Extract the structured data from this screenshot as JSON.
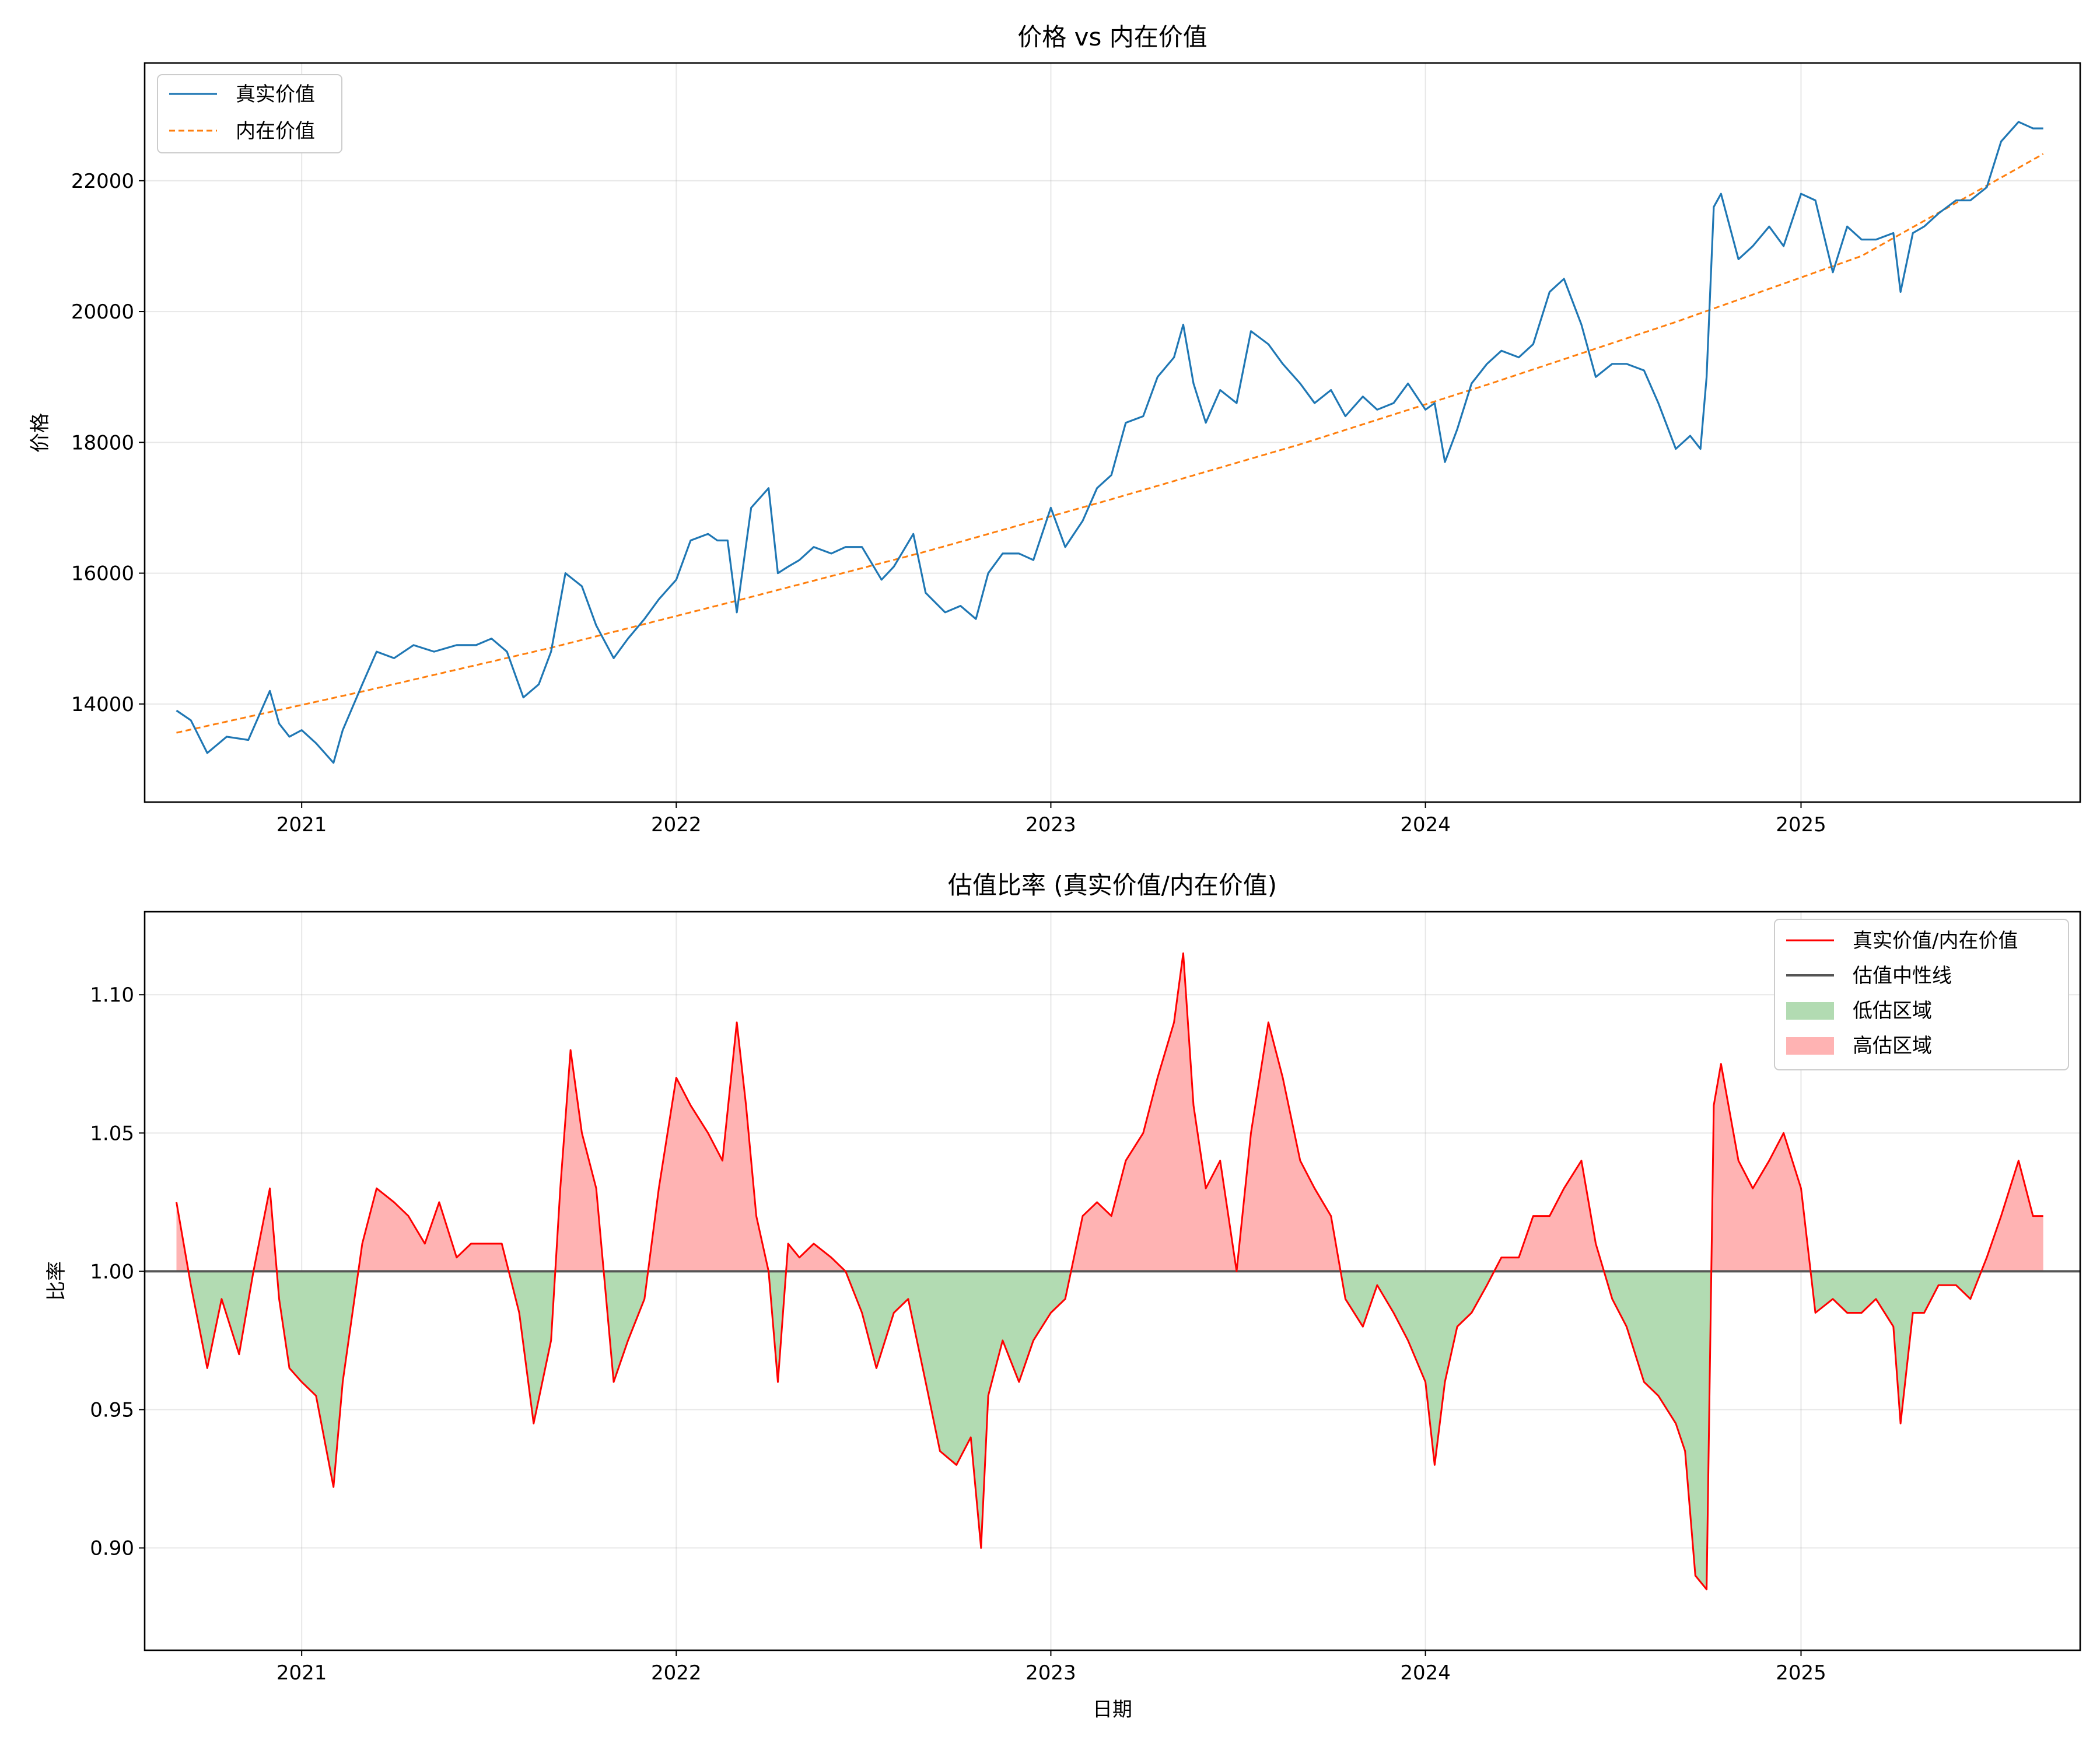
{
  "colors": {
    "price_line": "#1f77b4",
    "intrinsic_line": "#ff7f0e",
    "ratio_line": "#ff0000",
    "neutral_line": "#555555",
    "under_fill": "#b2dbb2",
    "over_fill": "#ffb3b3"
  },
  "chart_data": [
    {
      "type": "line",
      "title": "价格 vs 内在价值",
      "xlabel": "",
      "ylabel": "价格",
      "x_range": [
        "2020-08-01",
        "2025-09-30"
      ],
      "ylim": [
        12500,
        23800
      ],
      "x_ticks": [
        "2021",
        "2022",
        "2023",
        "2024",
        "2025"
      ],
      "y_ticks": [
        14000,
        16000,
        18000,
        20000,
        22000
      ],
      "y_tick_labels": [
        "14000",
        "16000",
        "18000",
        "20000",
        "22000"
      ],
      "grid": true,
      "legend": "top-left",
      "legend_labels": [
        "真实价值",
        "内在价值"
      ],
      "series": [
        {
          "name": "真实价值",
          "style": "solid",
          "x": [
            "2020-09-01",
            "2020-09-15",
            "2020-10-01",
            "2020-10-20",
            "2020-11-10",
            "2020-12-01",
            "2020-12-10",
            "2020-12-20",
            "2021-01-01",
            "2021-01-15",
            "2021-02-01",
            "2021-02-10",
            "2021-03-01",
            "2021-03-15",
            "2021-04-01",
            "2021-04-20",
            "2021-05-10",
            "2021-06-01",
            "2021-06-20",
            "2021-07-05",
            "2021-07-20",
            "2021-08-05",
            "2021-08-20",
            "2021-09-01",
            "2021-09-15",
            "2021-10-01",
            "2021-10-15",
            "2021-11-01",
            "2021-11-15",
            "2021-12-01",
            "2021-12-15",
            "2022-01-01",
            "2022-01-15",
            "2022-02-01",
            "2022-02-10",
            "2022-02-20",
            "2022-03-01",
            "2022-03-15",
            "2022-04-01",
            "2022-04-10",
            "2022-04-20",
            "2022-05-01",
            "2022-05-15",
            "2022-06-01",
            "2022-06-15",
            "2022-07-01",
            "2022-07-20",
            "2022-08-01",
            "2022-08-20",
            "2022-09-01",
            "2022-09-20",
            "2022-10-05",
            "2022-10-20",
            "2022-11-01",
            "2022-11-15",
            "2022-12-01",
            "2022-12-15",
            "2023-01-01",
            "2023-01-15",
            "2023-02-01",
            "2023-02-15",
            "2023-03-01",
            "2023-03-15",
            "2023-04-01",
            "2023-04-15",
            "2023-05-01",
            "2023-05-10",
            "2023-05-20",
            "2023-06-01",
            "2023-06-15",
            "2023-07-01",
            "2023-07-15",
            "2023-08-01",
            "2023-08-15",
            "2023-09-01",
            "2023-09-15",
            "2023-10-01",
            "2023-10-15",
            "2023-11-01",
            "2023-11-15",
            "2023-12-01",
            "2023-12-15",
            "2024-01-01",
            "2024-01-10",
            "2024-01-20",
            "2024-02-01",
            "2024-02-15",
            "2024-03-01",
            "2024-03-15",
            "2024-04-01",
            "2024-04-15",
            "2024-05-01",
            "2024-05-15",
            "2024-06-01",
            "2024-06-15",
            "2024-07-01",
            "2024-07-15",
            "2024-08-01",
            "2024-08-15",
            "2024-09-01",
            "2024-09-15",
            "2024-09-25",
            "2024-10-01",
            "2024-10-08",
            "2024-10-15",
            "2024-11-01",
            "2024-11-15",
            "2024-12-01",
            "2024-12-15",
            "2025-01-01",
            "2025-01-15",
            "2025-02-01",
            "2025-02-15",
            "2025-03-01",
            "2025-03-15",
            "2025-04-01",
            "2025-04-08",
            "2025-04-20",
            "2025-05-01",
            "2025-05-15",
            "2025-06-01",
            "2025-06-15",
            "2025-07-01",
            "2025-07-15",
            "2025-08-01",
            "2025-08-15",
            "2025-08-25"
          ],
          "y": [
            13900,
            13750,
            13250,
            13500,
            13450,
            14200,
            13700,
            13500,
            13600,
            13400,
            13100,
            13600,
            14300,
            14800,
            14700,
            14900,
            14800,
            14900,
            14900,
            15000,
            14800,
            14100,
            14300,
            14800,
            16000,
            15800,
            15200,
            14700,
            15000,
            15300,
            15600,
            15900,
            16500,
            16600,
            16500,
            16500,
            15400,
            17000,
            17300,
            16000,
            16100,
            16200,
            16400,
            16300,
            16400,
            16400,
            15900,
            16100,
            16600,
            15700,
            15400,
            15500,
            15300,
            16000,
            16300,
            16300,
            16200,
            17000,
            16400,
            16800,
            17300,
            17500,
            18300,
            18400,
            19000,
            19300,
            19800,
            18900,
            18300,
            18800,
            18600,
            19700,
            19500,
            19200,
            18900,
            18600,
            18800,
            18400,
            18700,
            18500,
            18600,
            18900,
            18500,
            18600,
            17700,
            18200,
            18900,
            19200,
            19400,
            19300,
            19500,
            20300,
            20500,
            19800,
            19000,
            19200,
            19200,
            19100,
            18600,
            17900,
            18100,
            17900,
            19000,
            21600,
            21800,
            20800,
            21000,
            21300,
            21000,
            21800,
            21700,
            20600,
            21300,
            21100,
            21100,
            21200,
            20300,
            21200,
            21300,
            21500,
            21700,
            21700,
            21900,
            22600,
            22900,
            22800,
            22800
          ]
        },
        {
          "name": "内在价值",
          "style": "dashed",
          "x": [
            "2020-09-01",
            "2021-03-01",
            "2021-09-01",
            "2022-03-01",
            "2022-09-01",
            "2023-03-01",
            "2023-09-01",
            "2024-03-01",
            "2024-09-01",
            "2025-03-01",
            "2025-08-25"
          ],
          "y": [
            13560,
            14190,
            14860,
            15580,
            16330,
            17130,
            17970,
            18880,
            19840,
            20850,
            22410
          ]
        }
      ]
    },
    {
      "type": "area",
      "title": "估值比率 (真实价值/内在价值)",
      "xlabel": "日期",
      "ylabel": "比率",
      "x_range": [
        "2020-08-01",
        "2025-09-30"
      ],
      "ylim": [
        0.863,
        1.13
      ],
      "x_ticks": [
        "2021",
        "2022",
        "2023",
        "2024",
        "2025"
      ],
      "y_ticks": [
        0.9,
        0.95,
        1.0,
        1.05,
        1.1
      ],
      "y_tick_labels": [
        "0.90",
        "0.95",
        "1.00",
        "1.05",
        "1.10"
      ],
      "grid": true,
      "legend": "top-right",
      "legend_labels": [
        "真实价值/内在价值",
        "估值中性线",
        "低估区域",
        "高估区域"
      ],
      "baseline": 1.0,
      "series": [
        {
          "name": "真实价值/内在价值",
          "x": [
            "2020-09-01",
            "2020-09-15",
            "2020-10-01",
            "2020-10-15",
            "2020-11-01",
            "2020-11-15",
            "2020-12-01",
            "2020-12-10",
            "2020-12-20",
            "2021-01-01",
            "2021-01-15",
            "2021-02-01",
            "2021-02-10",
            "2021-03-01",
            "2021-03-15",
            "2021-04-01",
            "2021-04-15",
            "2021-05-01",
            "2021-05-15",
            "2021-06-01",
            "2021-06-15",
            "2021-07-01",
            "2021-07-15",
            "2021-08-01",
            "2021-08-15",
            "2021-09-01",
            "2021-09-10",
            "2021-09-20",
            "2021-10-01",
            "2021-10-15",
            "2021-11-01",
            "2021-11-15",
            "2021-12-01",
            "2021-12-15",
            "2022-01-01",
            "2022-01-15",
            "2022-02-01",
            "2022-02-15",
            "2022-03-01",
            "2022-03-10",
            "2022-03-20",
            "2022-04-01",
            "2022-04-10",
            "2022-04-20",
            "2022-05-01",
            "2022-05-15",
            "2022-06-01",
            "2022-06-15",
            "2022-07-01",
            "2022-07-15",
            "2022-08-01",
            "2022-08-15",
            "2022-09-01",
            "2022-09-15",
            "2022-10-01",
            "2022-10-15",
            "2022-10-25",
            "2022-11-01",
            "2022-11-15",
            "2022-12-01",
            "2022-12-15",
            "2023-01-01",
            "2023-01-15",
            "2023-02-01",
            "2023-02-15",
            "2023-03-01",
            "2023-03-15",
            "2023-04-01",
            "2023-04-15",
            "2023-05-01",
            "2023-05-10",
            "2023-05-20",
            "2023-06-01",
            "2023-06-15",
            "2023-07-01",
            "2023-07-15",
            "2023-08-01",
            "2023-08-15",
            "2023-09-01",
            "2023-09-15",
            "2023-10-01",
            "2023-10-15",
            "2023-11-01",
            "2023-11-15",
            "2023-12-01",
            "2023-12-15",
            "2024-01-01",
            "2024-01-10",
            "2024-01-20",
            "2024-02-01",
            "2024-02-15",
            "2024-03-01",
            "2024-03-15",
            "2024-04-01",
            "2024-04-15",
            "2024-05-01",
            "2024-05-15",
            "2024-06-01",
            "2024-06-15",
            "2024-07-01",
            "2024-07-15",
            "2024-08-01",
            "2024-08-15",
            "2024-09-01",
            "2024-09-10",
            "2024-09-20",
            "2024-10-01",
            "2024-10-08",
            "2024-10-15",
            "2024-11-01",
            "2024-11-15",
            "2024-12-01",
            "2024-12-15",
            "2025-01-01",
            "2025-01-15",
            "2025-02-01",
            "2025-02-15",
            "2025-03-01",
            "2025-03-15",
            "2025-04-01",
            "2025-04-08",
            "2025-04-20",
            "2025-05-01",
            "2025-05-15",
            "2025-06-01",
            "2025-06-15",
            "2025-07-01",
            "2025-07-15",
            "2025-08-01",
            "2025-08-15",
            "2025-08-25"
          ],
          "y": [
            1.025,
            0.995,
            0.965,
            0.99,
            0.97,
            1.0,
            1.03,
            0.99,
            0.965,
            0.96,
            0.955,
            0.922,
            0.96,
            1.01,
            1.03,
            1.025,
            1.02,
            1.01,
            1.025,
            1.005,
            1.01,
            1.01,
            1.01,
            0.985,
            0.945,
            0.975,
            1.03,
            1.08,
            1.05,
            1.03,
            0.96,
            0.975,
            0.99,
            1.03,
            1.07,
            1.06,
            1.05,
            1.04,
            1.09,
            1.06,
            1.02,
            1.0,
            0.96,
            1.01,
            1.005,
            1.01,
            1.005,
            1.0,
            0.985,
            0.965,
            0.985,
            0.99,
            0.96,
            0.935,
            0.93,
            0.94,
            0.9,
            0.955,
            0.975,
            0.96,
            0.975,
            0.985,
            0.99,
            1.02,
            1.025,
            1.02,
            1.04,
            1.05,
            1.07,
            1.09,
            1.115,
            1.06,
            1.03,
            1.04,
            1.0,
            1.05,
            1.09,
            1.07,
            1.04,
            1.03,
            1.02,
            0.99,
            0.98,
            0.995,
            0.985,
            0.975,
            0.96,
            0.93,
            0.96,
            0.98,
            0.985,
            0.995,
            1.005,
            1.005,
            1.02,
            1.02,
            1.03,
            1.04,
            1.01,
            0.99,
            0.98,
            0.96,
            0.955,
            0.945,
            0.935,
            0.89,
            0.885,
            1.06,
            1.075,
            1.04,
            1.03,
            1.04,
            1.05,
            1.03,
            0.985,
            0.99,
            0.985,
            0.985,
            0.99,
            0.98,
            0.945,
            0.985,
            0.985,
            0.995,
            0.995,
            0.99,
            1.005,
            1.02,
            1.04,
            1.02,
            1.02
          ]
        },
        {
          "name": "估值中性线",
          "value": 1.0
        }
      ]
    }
  ]
}
